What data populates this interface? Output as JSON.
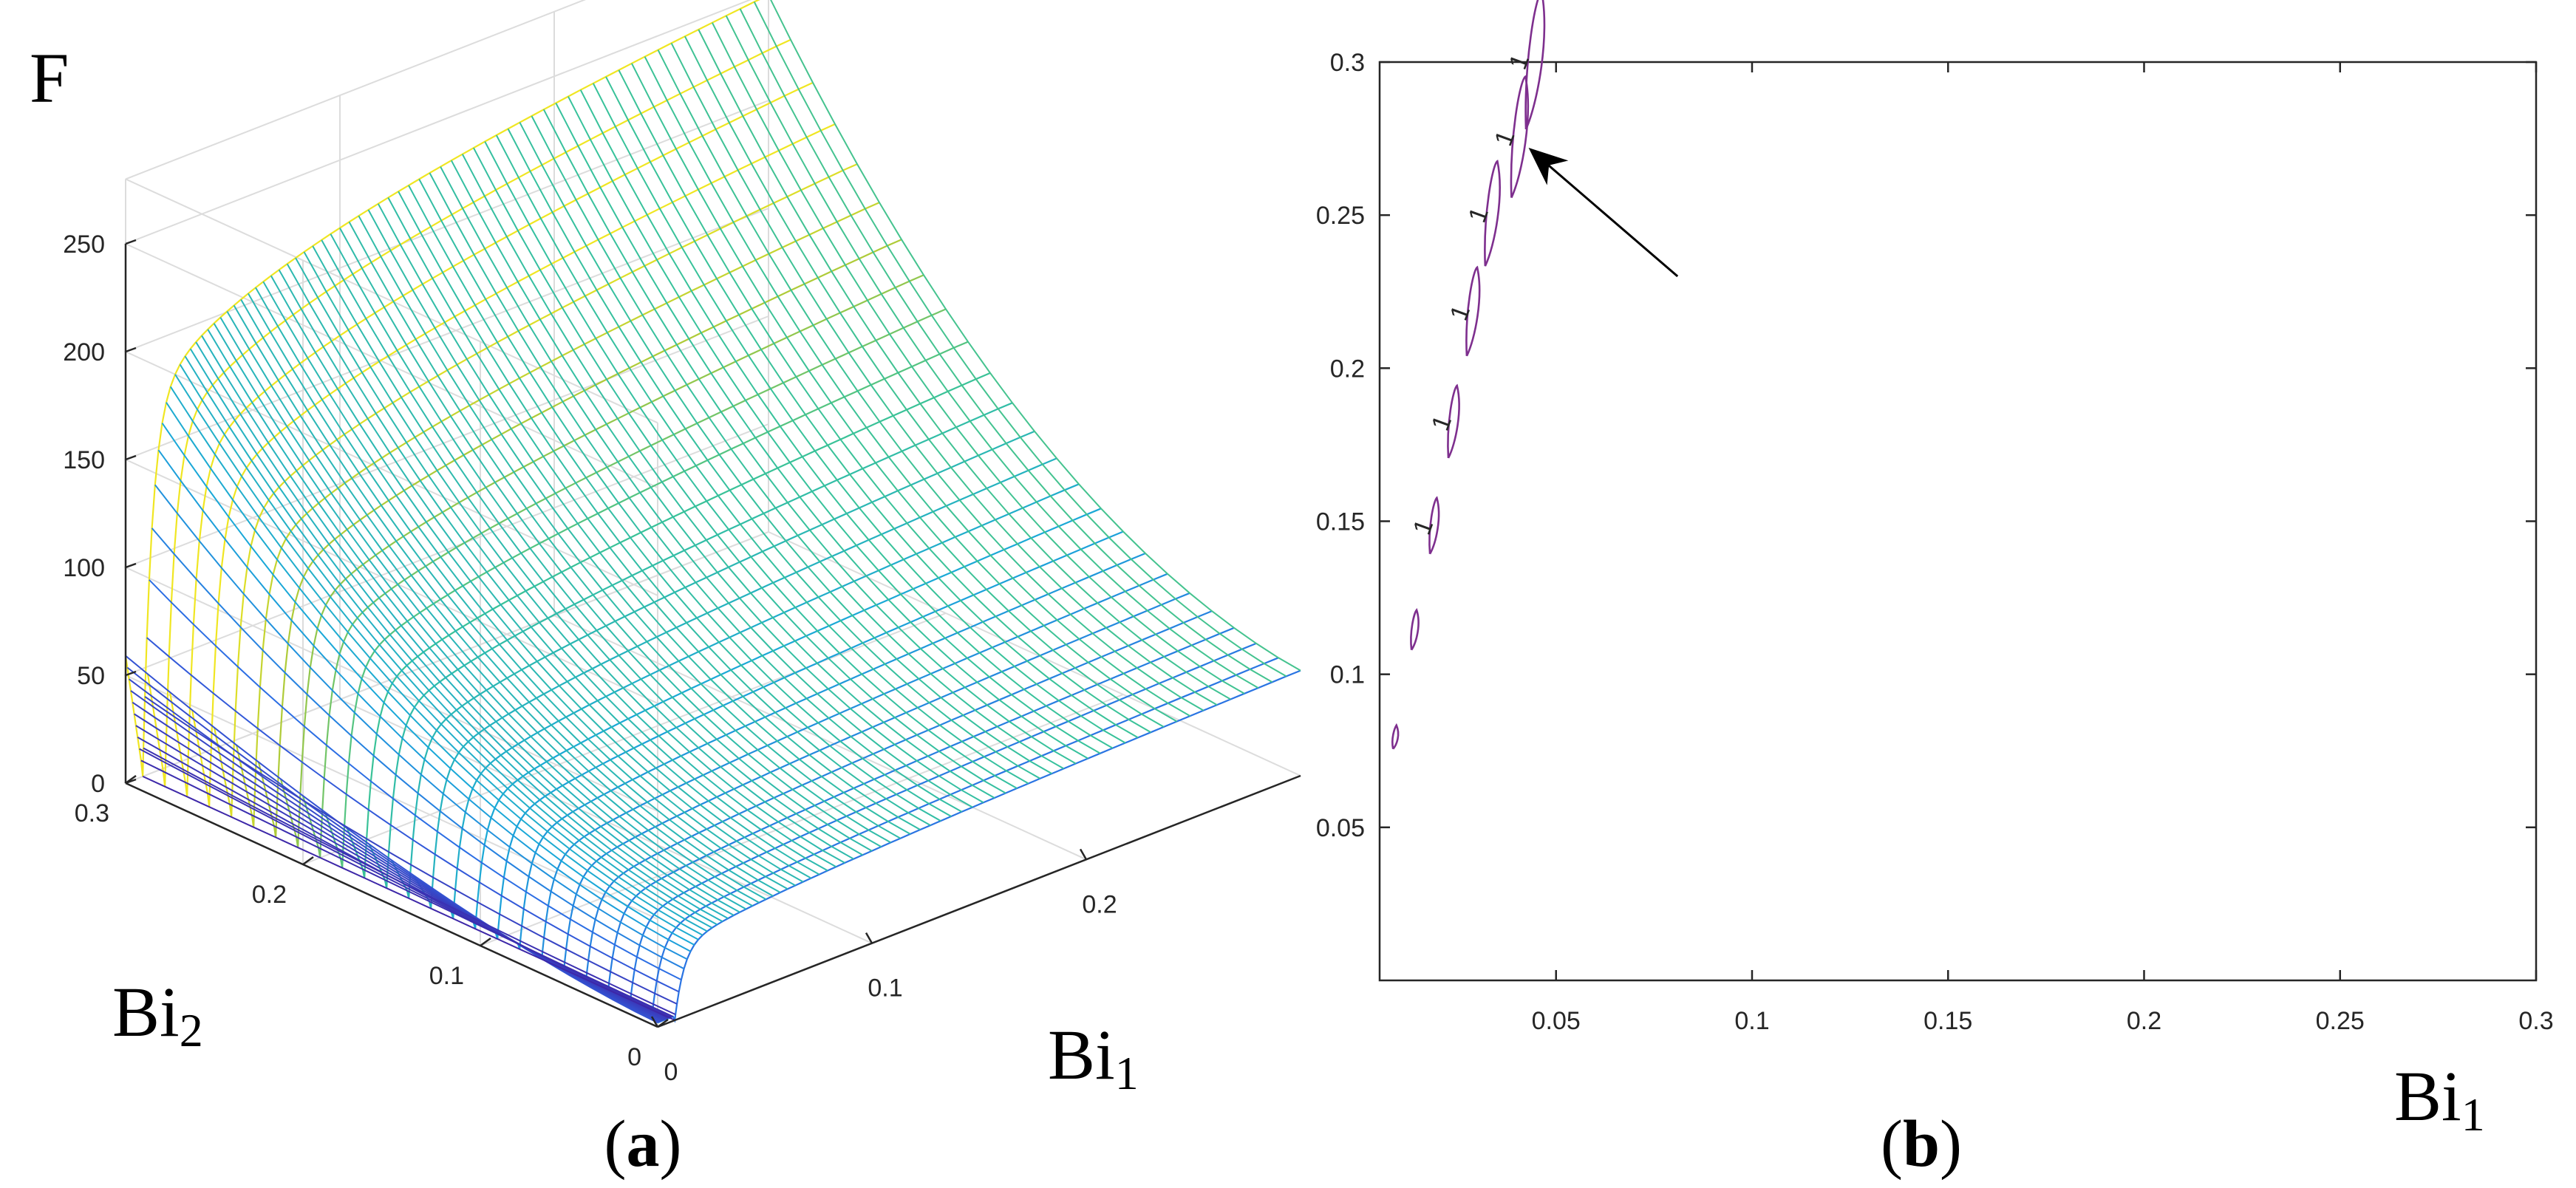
{
  "panel_a": {
    "label": "a",
    "chart_data": {
      "type": "surface",
      "zlabel": "F",
      "xlabel": "Bi",
      "xlabel_sub": "1",
      "ylabel": "Bi",
      "ylabel_sub": "2",
      "x_ticks": [
        "0",
        "0.1",
        "0.2"
      ],
      "y_ticks": [
        "0",
        "0.1",
        "0.2",
        "0.3"
      ],
      "z_ticks": [
        "0",
        "50",
        "100",
        "150",
        "200",
        "250"
      ],
      "xlim": [
        0,
        0.3
      ],
      "ylim": [
        0,
        0.3
      ],
      "zlim": [
        0,
        250
      ],
      "grid": true,
      "colormap": [
        "#3d27a8",
        "#2f66e6",
        "#1aa8d8",
        "#38c29a",
        "#a8c83a",
        "#f0e622"
      ],
      "edge_values": {
        "at_Bi1_0_Bi2_0.3": 57,
        "min_near_Bi1_0.01_Bi2_0.05": 0,
        "at_Bi1_0.3_Bi2_0.3": 200,
        "at_Bi1_0.3_Bi2_0": 65
      }
    }
  },
  "panel_b": {
    "label": "b",
    "chart_data": {
      "type": "contour",
      "xlabel": "Bi",
      "xlabel_sub": "1",
      "x_ticks": [
        "0.05",
        "0.1",
        "0.15",
        "0.2",
        "0.25",
        "0.3"
      ],
      "y_ticks": [
        "0.05",
        "0.1",
        "0.15",
        "0.2",
        "0.25",
        "0.3"
      ],
      "xlim": [
        0.005,
        0.3
      ],
      "ylim": [
        0,
        0.3
      ],
      "contour_level_label": "1",
      "contour_color": "#7e2f8e",
      "contour_points": [
        {
          "x": 0.009,
          "y": 0.079
        },
        {
          "x": 0.014,
          "y": 0.114
        },
        {
          "x": 0.019,
          "y": 0.148
        },
        {
          "x": 0.024,
          "y": 0.182
        },
        {
          "x": 0.029,
          "y": 0.218
        },
        {
          "x": 0.034,
          "y": 0.25
        },
        {
          "x": 0.041,
          "y": 0.275
        },
        {
          "x": 0.045,
          "y": 0.3
        }
      ],
      "arrow": {
        "from": {
          "x": 0.081,
          "y": 0.23
        },
        "to": {
          "x": 0.043,
          "y": 0.272
        }
      },
      "grid": false
    }
  }
}
